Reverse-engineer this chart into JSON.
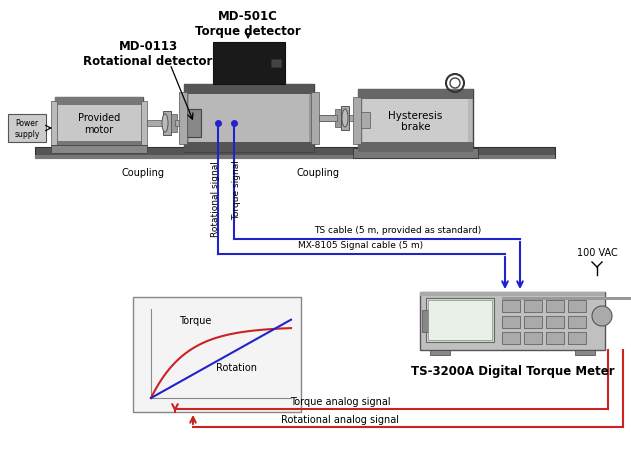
{
  "bg_color": "#ffffff",
  "fig_width": 6.31,
  "fig_height": 4.77,
  "labels": {
    "md501c": "MD-501C\nTorque detector",
    "md0113": "MD-0113\nRotational detector",
    "provided_motor": "Provided\nmotor",
    "power_supply": "Power\nsupply",
    "hysteresis_brake": "Hysteresis\nbrake",
    "coupling1": "Coupling",
    "coupling2": "Coupling",
    "rotational_signal": "Rotational signal",
    "torque_signal": "Torque signal",
    "ts_cable": "TS cable (5 m, provided as standard)",
    "mx_cable": "MX-8105 Signal cable (5 m)",
    "ts_meter": "TS-3200A Digital Torque Meter",
    "torque_analog": "Torque analog signal",
    "rotation_analog": "Rotational analog signal",
    "100vac": "100 VAC",
    "torque_curve": "Torque",
    "rotation_curve": "Rotation"
  },
  "colors": {
    "blue": "#2222cc",
    "red": "#cc2222",
    "black": "#000000",
    "gray1": "#aaaaaa",
    "gray2": "#888888",
    "gray3": "#666666",
    "gray4": "#444444",
    "gray5": "#bbbbbb",
    "gray6": "#cccccc",
    "dark": "#222222",
    "white": "#ffffff",
    "light_gray": "#e8e8e8",
    "screen_green": "#d8e8d8"
  }
}
